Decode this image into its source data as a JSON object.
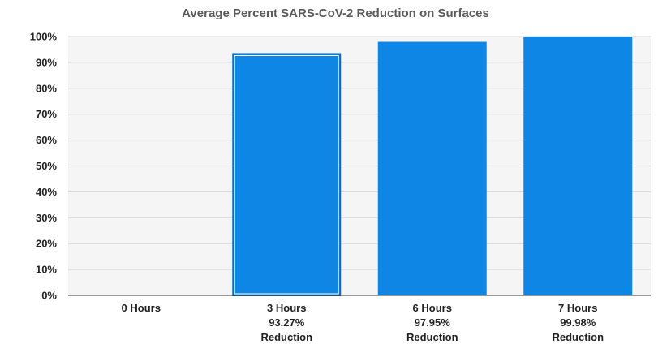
{
  "chart_data": {
    "type": "bar",
    "title": "Average Percent SARS-CoV-2 Reduction on Surfaces",
    "xlabel": "",
    "ylabel": "",
    "categories": [
      "0 Hours",
      "3 Hours",
      "6 Hours",
      "7 Hours"
    ],
    "sublabels": [
      [
        "",
        ""
      ],
      [
        "93.27%",
        "Reduction"
      ],
      [
        "97.95%",
        "Reduction"
      ],
      [
        "99.98%",
        "Reduction"
      ]
    ],
    "values": [
      0,
      93.27,
      97.95,
      99.98
    ],
    "ylim": [
      0,
      100
    ],
    "yticks": [
      0,
      10,
      20,
      30,
      40,
      50,
      60,
      70,
      80,
      90,
      100
    ],
    "ytick_labels": [
      "0%",
      "10%",
      "20%",
      "30%",
      "40%",
      "50%",
      "60%",
      "70%",
      "80%",
      "90%",
      "100%"
    ],
    "grid": true,
    "legend": "none",
    "colors": {
      "bar": "#0d86e6",
      "bar_outline": "#0b6fc1",
      "plot_bg": "#f4f5f4",
      "grid": "#d6d6d6",
      "title": "#5a5a5a",
      "text": "#222222"
    }
  }
}
